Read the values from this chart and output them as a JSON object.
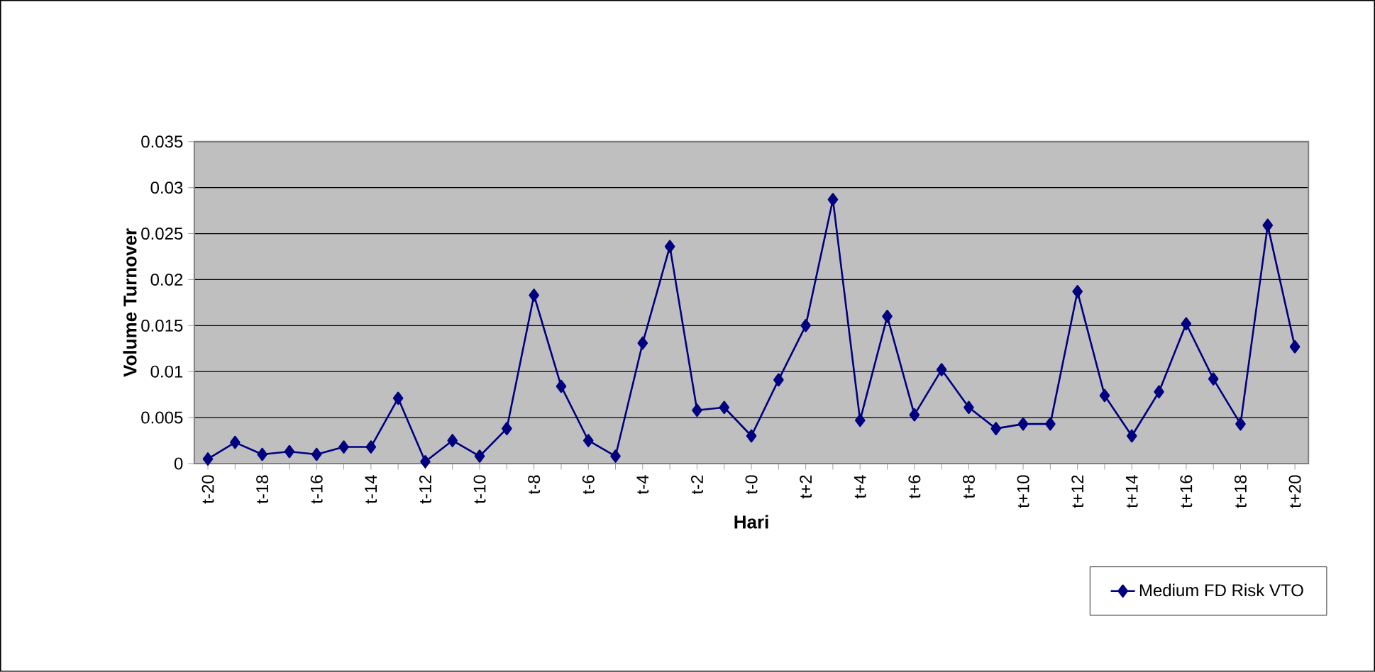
{
  "chart_data": {
    "type": "line",
    "xlabel": "Hari",
    "ylabel": "Volume Turnover",
    "categories": [
      "t-20",
      null,
      "t-18",
      null,
      "t-16",
      null,
      "t-14",
      null,
      "t-12",
      null,
      "t-10",
      null,
      "t-8",
      null,
      "t-6",
      null,
      "t-4",
      null,
      "t-2",
      null,
      "t-0",
      null,
      "t+2",
      null,
      "t+4",
      null,
      "t+6",
      null,
      "t+8",
      null,
      "t+10",
      null,
      "t+12",
      null,
      "t+14",
      null,
      "t+16",
      null,
      "t+18",
      null,
      "t+20"
    ],
    "series": [
      {
        "name": "Medium FD Risk VTO",
        "color": "#000080",
        "values": [
          0.0005,
          0.0023,
          0.001,
          0.0013,
          0.001,
          0.0018,
          0.0018,
          0.0071,
          0.0002,
          0.0025,
          0.0008,
          0.0038,
          0.0183,
          0.0084,
          0.0025,
          0.0008,
          0.0131,
          0.0236,
          0.0058,
          0.0061,
          0.003,
          0.0091,
          0.015,
          0.0287,
          0.0047,
          0.016,
          0.0053,
          0.0102,
          0.0061,
          0.0038,
          0.0043,
          0.0043,
          0.0187,
          0.0074,
          0.003,
          0.0078,
          0.0152,
          0.0092,
          0.0043,
          0.0259,
          0.0127
        ]
      }
    ],
    "ylim": [
      0,
      0.035
    ],
    "yticks": [
      0,
      0.005,
      0.01,
      0.015,
      0.02,
      0.025,
      0.03,
      0.035
    ],
    "grid": "y",
    "legend": "bottom right",
    "marker": "diamond",
    "line_style": "solid"
  }
}
